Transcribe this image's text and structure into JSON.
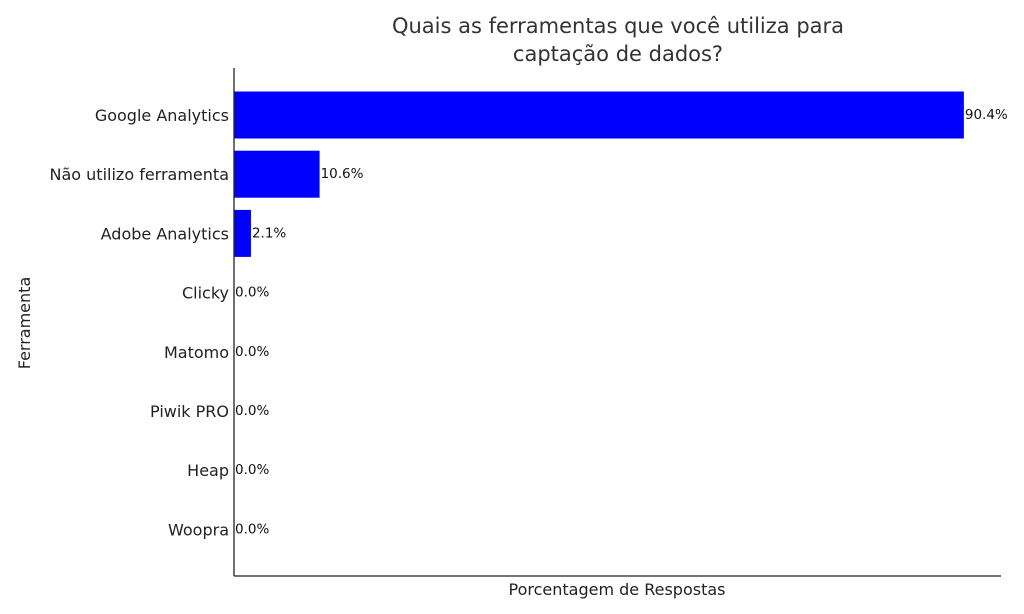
{
  "chart_data": {
    "type": "bar",
    "orientation": "horizontal",
    "title_lines": [
      "Quais as ferramentas que você utiliza para",
      "captação de dados?"
    ],
    "xlabel": "Porcentagem de Respostas",
    "ylabel": "Ferramenta",
    "categories": [
      "Google Analytics",
      "Não utilizo ferramenta",
      "Adobe Analytics",
      "Clicky",
      "Matomo",
      "Piwik PRO",
      "Heap",
      "Woopra"
    ],
    "values": [
      90.4,
      10.6,
      2.1,
      0.0,
      0.0,
      0.0,
      0.0,
      0.0
    ],
    "value_labels": [
      "90.4%",
      "10.6%",
      "2.1%",
      "0.0%",
      "0.0%",
      "0.0%",
      "0.0%",
      "0.0%"
    ],
    "xlim": [
      0,
      95
    ],
    "grid": false,
    "bar_color": "#0000ff"
  }
}
